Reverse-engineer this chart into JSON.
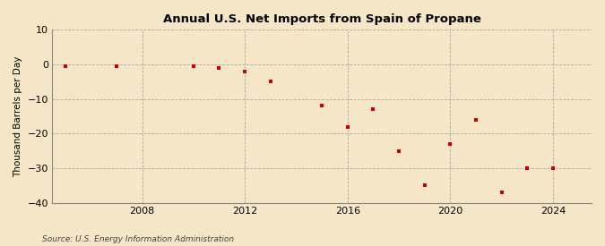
{
  "title": "Annual U.S. Net Imports from Spain of Propane",
  "ylabel": "Thousand Barrels per Day",
  "source": "Source: U.S. Energy Information Administration",
  "background_color": "#f5e6c8",
  "plot_background_color": "#f5e6c8",
  "data_color": "#cc0000",
  "xlim": [
    2004.5,
    2025.5
  ],
  "ylim": [
    -40,
    10
  ],
  "yticks": [
    -40,
    -30,
    -20,
    -10,
    0,
    10
  ],
  "xticks": [
    2008,
    2012,
    2016,
    2020,
    2024
  ],
  "years": [
    2005,
    2007,
    2010,
    2011,
    2012,
    2013,
    2015,
    2016,
    2017,
    2018,
    2019,
    2020,
    2021,
    2022,
    2023,
    2024
  ],
  "values": [
    -0.5,
    -0.5,
    -0.5,
    -1.0,
    -2.0,
    -5.0,
    -12.0,
    -18.0,
    -13.0,
    -25.0,
    -35.0,
    -23.0,
    -16.0,
    -37.0,
    -30.0,
    -30.0
  ]
}
